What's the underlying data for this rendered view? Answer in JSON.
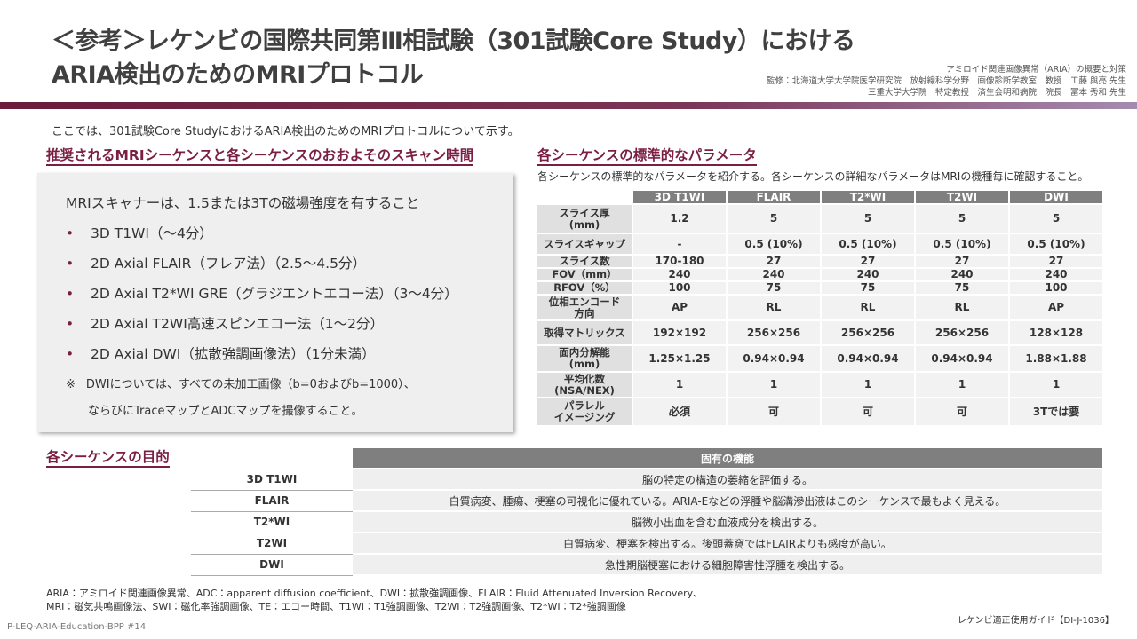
{
  "header": {
    "title_lines": [
      "＜参考＞レケンビの国際共同第Ⅲ相試験（301試験Core Study）における",
      "ARIA検出のためのMRIプロトコル"
    ],
    "credit_lines": [
      "アミロイド関連画像異常（ARIA）の概要と対策",
      "監修：北海道大学大学院医学研究院　放射線科学分野　画像診断学教室　教授　工藤 與亮 先生",
      "三重大学大学院　特定教授　済生会明和病院　院長　冨本 秀和 先生"
    ]
  },
  "intro": "ここでは、301試験Core StudyにおけるARIA検出のためのMRIプロトコルについて示す。",
  "left": {
    "heading": "推奨されるMRIシーケンスと各シーケンスのおおよそのスキャン時間",
    "lead": "MRIスキャナーは、1.5または3Tの磁場強度を有すること",
    "items": [
      "3D T1WI（～4分）",
      "2D Axial FLAIR（フレア法）（2.5～4.5分）",
      "2D Axial T2*WI GRE（グラジエントエコー法）（3～4分）",
      "2D Axial T2WI高速スピンエコー法（1～2分）",
      "2D Axial DWI（拡散強調画像法）（1分未満）"
    ],
    "note_mark": "※",
    "note_lines": [
      "DWIについては、すべての未加工画像（b=0およびb=1000）、",
      "ならびにTraceマップとADCマップを撮像すること。"
    ]
  },
  "right": {
    "heading": "各シーケンスの標準的なパラメータ",
    "subtitle": "各シーケンスの標準的なパラメータを紹介する。各シーケンスの詳細なパラメータはMRIの機種毎に確認すること。",
    "table": {
      "header": [
        "3D T1WI",
        "FLAIR",
        "T2*WI",
        "T2WI",
        "DWI"
      ],
      "rows": [
        {
          "label": [
            "スライス厚",
            "(mm)"
          ],
          "values": [
            "1.2",
            "5",
            "5",
            "5",
            "5"
          ]
        },
        {
          "label": [
            "スライスギャップ"
          ],
          "values": [
            "-",
            "0.5 (10%)",
            "0.5 (10%)",
            "0.5 (10%)",
            "0.5 (10%)"
          ]
        },
        {
          "label": [
            "スライス数"
          ],
          "values": [
            "170-180",
            "27",
            "27",
            "27",
            "27"
          ]
        },
        {
          "label": [
            "FOV（mm）"
          ],
          "values": [
            "240",
            "240",
            "240",
            "240",
            "240"
          ]
        },
        {
          "label": [
            "RFOV（%）"
          ],
          "values": [
            "100",
            "75",
            "75",
            "75",
            "100"
          ]
        },
        {
          "label": [
            "位相エンコード",
            "方向"
          ],
          "values": [
            "AP",
            "RL",
            "RL",
            "RL",
            "AP"
          ]
        },
        {
          "label": [
            "取得マトリックス"
          ],
          "values": [
            "192×192",
            "256×256",
            "256×256",
            "256×256",
            "128×128"
          ]
        },
        {
          "label": [
            "面内分解能",
            "(mm)"
          ],
          "values": [
            "1.25×1.25",
            "0.94×0.94",
            "0.94×0.94",
            "0.94×0.94",
            "1.88×1.88"
          ]
        },
        {
          "label": [
            "平均化数",
            "(NSA/NEX)"
          ],
          "values": [
            "1",
            "1",
            "1",
            "1",
            "1"
          ]
        },
        {
          "label": [
            "パラレル",
            "イメージング"
          ],
          "values": [
            "必須",
            "可",
            "可",
            "可",
            "3Tでは要"
          ]
        }
      ]
    }
  },
  "purpose": {
    "heading": "各シーケンスの目的",
    "header": "固有の機能",
    "rows": [
      [
        "3D T1WI",
        "脳の特定の構造の萎縮を評価する。"
      ],
      [
        "FLAIR",
        "白質病変、腫瘍、梗塞の可視化に優れている。ARIA-Eなどの浮腫や脳溝滲出液はこのシーケンスで最もよく見える。"
      ],
      [
        "T2*WI",
        "脳微小出血を含む血液成分を検出する。"
      ],
      [
        "T2WI",
        "白質病変、梗塞を検出する。後頭蓋窩ではFLAIRよりも感度が高い。"
      ],
      [
        "DWI",
        "急性期脳梗塞における細胞障害性浮腫を検出する。"
      ]
    ]
  },
  "footnotes": [
    "ARIA：アミロイド関連画像異常、ADC：apparent diffusion coefficient、DWI：拡散強調画像、FLAIR：Fluid Attenuated Inversion Recovery、",
    "MRI：磁気共鳴画像法、SWI：磁化率強調画像、TE：エコー時間、T1WI：T1強調画像、T2WI：T2強調画像、T2*WI：T2*強調画像"
  ],
  "footer": {
    "code": "P-LEQ-ARIA-Education-BPP #14",
    "guide": "レケンビ適正使用ガイド【DI-J-1036】"
  }
}
